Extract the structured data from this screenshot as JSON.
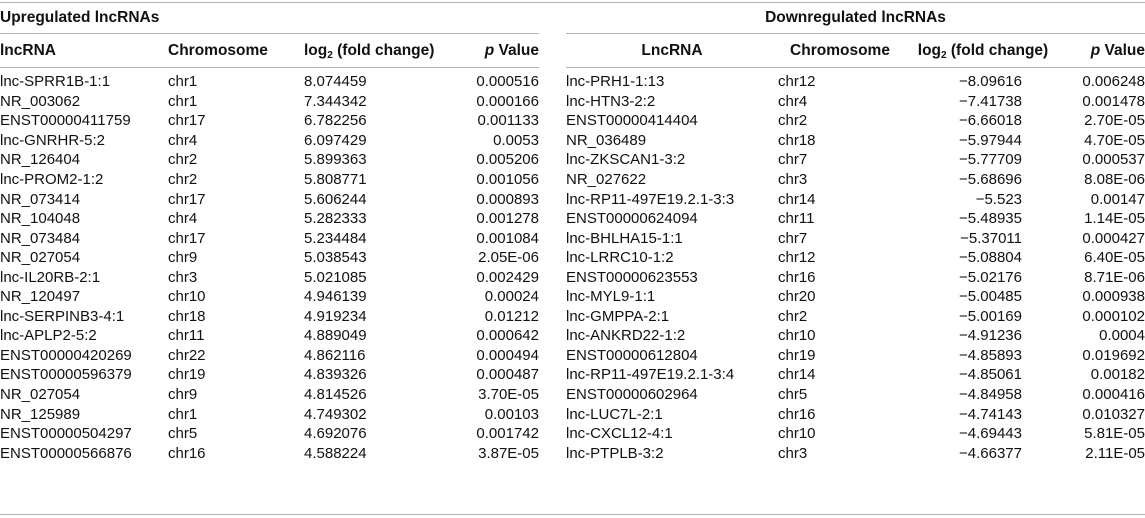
{
  "upregulated": {
    "title": "Upregulated lncRNAs",
    "headers": {
      "lncrna": "lncRNA",
      "chromosome": "Chromosome",
      "log_prefix": "log",
      "log_sub": "2",
      "log_suffix": " (fold change)",
      "p_italic": "p",
      "p_suffix": " Value"
    },
    "rows": [
      [
        "lnc-SPRR1B-1:1",
        "chr1",
        "8.074459",
        "0.000516"
      ],
      [
        "NR_003062",
        "chr1",
        "7.344342",
        "0.000166"
      ],
      [
        "ENST00000411759",
        "chr17",
        "6.782256",
        "0.001133"
      ],
      [
        "lnc-GNRHR-5:2",
        "chr4",
        "6.097429",
        "0.0053"
      ],
      [
        "NR_126404",
        "chr2",
        "5.899363",
        "0.005206"
      ],
      [
        "lnc-PROM2-1:2",
        "chr2",
        "5.808771",
        "0.001056"
      ],
      [
        "NR_073414",
        "chr17",
        "5.606244",
        "0.000893"
      ],
      [
        "NR_104048",
        "chr4",
        "5.282333",
        "0.001278"
      ],
      [
        "NR_073484",
        "chr17",
        "5.234484",
        "0.001084"
      ],
      [
        "NR_027054",
        "chr9",
        "5.038543",
        "2.05E-06"
      ],
      [
        "lnc-IL20RB-2:1",
        "chr3",
        "5.021085",
        "0.002429"
      ],
      [
        "NR_120497",
        "chr10",
        "4.946139",
        "0.00024"
      ],
      [
        "lnc-SERPINB3-4:1",
        "chr18",
        "4.919234",
        "0.01212"
      ],
      [
        "lnc-APLP2-5:2",
        "chr11",
        "4.889049",
        "0.000642"
      ],
      [
        "ENST00000420269",
        "chr22",
        "4.862116",
        "0.000494"
      ],
      [
        "ENST00000596379",
        "chr19",
        "4.839326",
        "0.000487"
      ],
      [
        "NR_027054",
        "chr9",
        "4.814526",
        "3.70E-05"
      ],
      [
        "NR_125989",
        "chr1",
        "4.749302",
        "0.00103"
      ],
      [
        "ENST00000504297",
        "chr5",
        "4.692076",
        "0.001742"
      ],
      [
        "ENST00000566876",
        "chr16",
        "4.588224",
        "3.87E-05"
      ]
    ]
  },
  "downregulated": {
    "title": "Downregulated lncRNAs",
    "headers": {
      "lncrna": "LncRNA",
      "chromosome": "Chromosome",
      "log_prefix": "log",
      "log_sub": "2",
      "log_suffix": " (fold change)",
      "p_italic": "p",
      "p_suffix": " Value"
    },
    "rows": [
      [
        "lnc-PRH1-1:13",
        "chr12",
        "−8.09616",
        "0.006248"
      ],
      [
        "lnc-HTN3-2:2",
        "chr4",
        "−7.41738",
        "0.001478"
      ],
      [
        "ENST00000414404",
        "chr2",
        "−6.66018",
        "2.70E-05"
      ],
      [
        "NR_036489",
        "chr18",
        "−5.97944",
        "4.70E-05"
      ],
      [
        "lnc-ZKSCAN1-3:2",
        "chr7",
        "−5.77709",
        "0.000537"
      ],
      [
        "NR_027622",
        "chr3",
        "−5.68696",
        "8.08E-06"
      ],
      [
        "lnc-RP11-497E19.2.1-3:3",
        "chr14",
        "−5.523",
        "0.00147"
      ],
      [
        "ENST00000624094",
        "chr11",
        "−5.48935",
        "1.14E-05"
      ],
      [
        "lnc-BHLHA15-1:1",
        "chr7",
        "−5.37011",
        "0.000427"
      ],
      [
        "lnc-LRRC10-1:2",
        "chr12",
        "−5.08804",
        "6.40E-05"
      ],
      [
        "ENST00000623553",
        "chr16",
        "−5.02176",
        "8.71E-06"
      ],
      [
        "lnc-MYL9-1:1",
        "chr20",
        "−5.00485",
        "0.000938"
      ],
      [
        "lnc-GMPPA-2:1",
        "chr2",
        "−5.00169",
        "0.000102"
      ],
      [
        "lnc-ANKRD22-1:2",
        "chr10",
        "−4.91236",
        "0.0004"
      ],
      [
        "ENST00000612804",
        "chr19",
        "−4.85893",
        "0.019692"
      ],
      [
        "lnc-RP11-497E19.2.1-3:4",
        "chr14",
        "−4.85061",
        "0.00182"
      ],
      [
        "ENST00000602964",
        "chr5",
        "−4.84958",
        "0.000416"
      ],
      [
        "lnc-LUC7L-2:1",
        "chr16",
        "−4.74143",
        "0.010327"
      ],
      [
        "lnc-CXCL12-4:1",
        "chr10",
        "−4.69443",
        "5.81E-05"
      ],
      [
        "lnc-PTPLB-3:2",
        "chr3",
        "−4.66377",
        "2.11E-05"
      ]
    ]
  }
}
